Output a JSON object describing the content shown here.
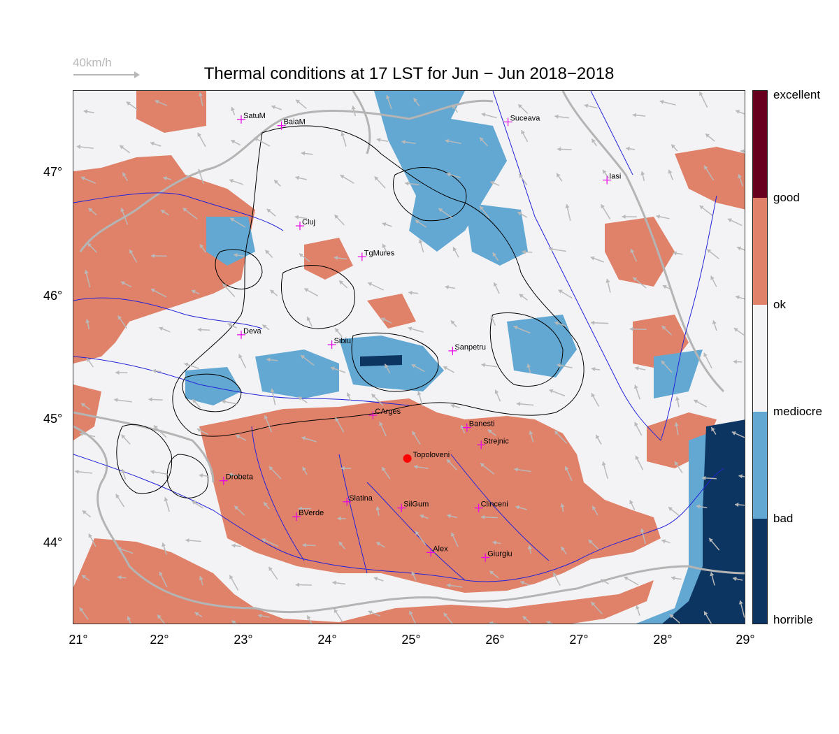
{
  "title": "Thermal conditions at 17 LST for Jun − Jun  2018−2018",
  "wind_legend": {
    "label": "40km/h"
  },
  "latitude_labels": [
    "47°",
    "46°",
    "45°",
    "44°"
  ],
  "longitude_labels": [
    "21°",
    "22°",
    "23°",
    "24°",
    "25°",
    "26°",
    "27°",
    "28°",
    "29°"
  ],
  "colorbar": {
    "labels": [
      "excellent",
      "good",
      "ok",
      "mediocre",
      "bad",
      "horrible"
    ],
    "colors": {
      "excellent": "#67001f",
      "good": "#e0826a",
      "ok": "#f3f3f5",
      "bad": "#63a8d2",
      "horrible": "#0d3562"
    }
  },
  "colors": {
    "river": "#2323d8",
    "border": "#b4b4b4",
    "contour": "#000000",
    "marker": "#e600e6",
    "highlight": "#ff0000",
    "wind_arrow": "#b9b9b9"
  },
  "cities": [
    {
      "name": "SatuM",
      "lon": 23.0,
      "lat": 47.43
    },
    {
      "name": "BaiaM",
      "lon": 23.48,
      "lat": 47.38
    },
    {
      "name": "Suceava",
      "lon": 26.18,
      "lat": 47.41
    },
    {
      "name": "Iasi",
      "lon": 27.36,
      "lat": 46.94
    },
    {
      "name": "Cluj",
      "lon": 23.7,
      "lat": 46.57
    },
    {
      "name": "TgMures",
      "lon": 24.44,
      "lat": 46.32
    },
    {
      "name": "Deva",
      "lon": 23.0,
      "lat": 45.69
    },
    {
      "name": "Sibiu",
      "lon": 24.08,
      "lat": 45.61
    },
    {
      "name": "Sanpetru",
      "lon": 25.52,
      "lat": 45.56
    },
    {
      "name": "CArges",
      "lon": 24.57,
      "lat": 45.04
    },
    {
      "name": "Banesti",
      "lon": 25.69,
      "lat": 44.94
    },
    {
      "name": "Strejnic",
      "lon": 25.86,
      "lat": 44.8
    },
    {
      "name": "Drobeta",
      "lon": 22.79,
      "lat": 44.51
    },
    {
      "name": "Slatina",
      "lon": 24.26,
      "lat": 44.34
    },
    {
      "name": "SilGum",
      "lon": 24.91,
      "lat": 44.29
    },
    {
      "name": "Clinceni",
      "lon": 25.83,
      "lat": 44.29
    },
    {
      "name": "BVerde",
      "lon": 23.66,
      "lat": 44.22
    },
    {
      "name": "Alex",
      "lon": 25.26,
      "lat": 43.93
    },
    {
      "name": "Giurgiu",
      "lon": 25.91,
      "lat": 43.89
    }
  ],
  "highlight_site": {
    "name": "Topoloveni",
    "lon": 24.98,
    "lat": 44.69
  }
}
